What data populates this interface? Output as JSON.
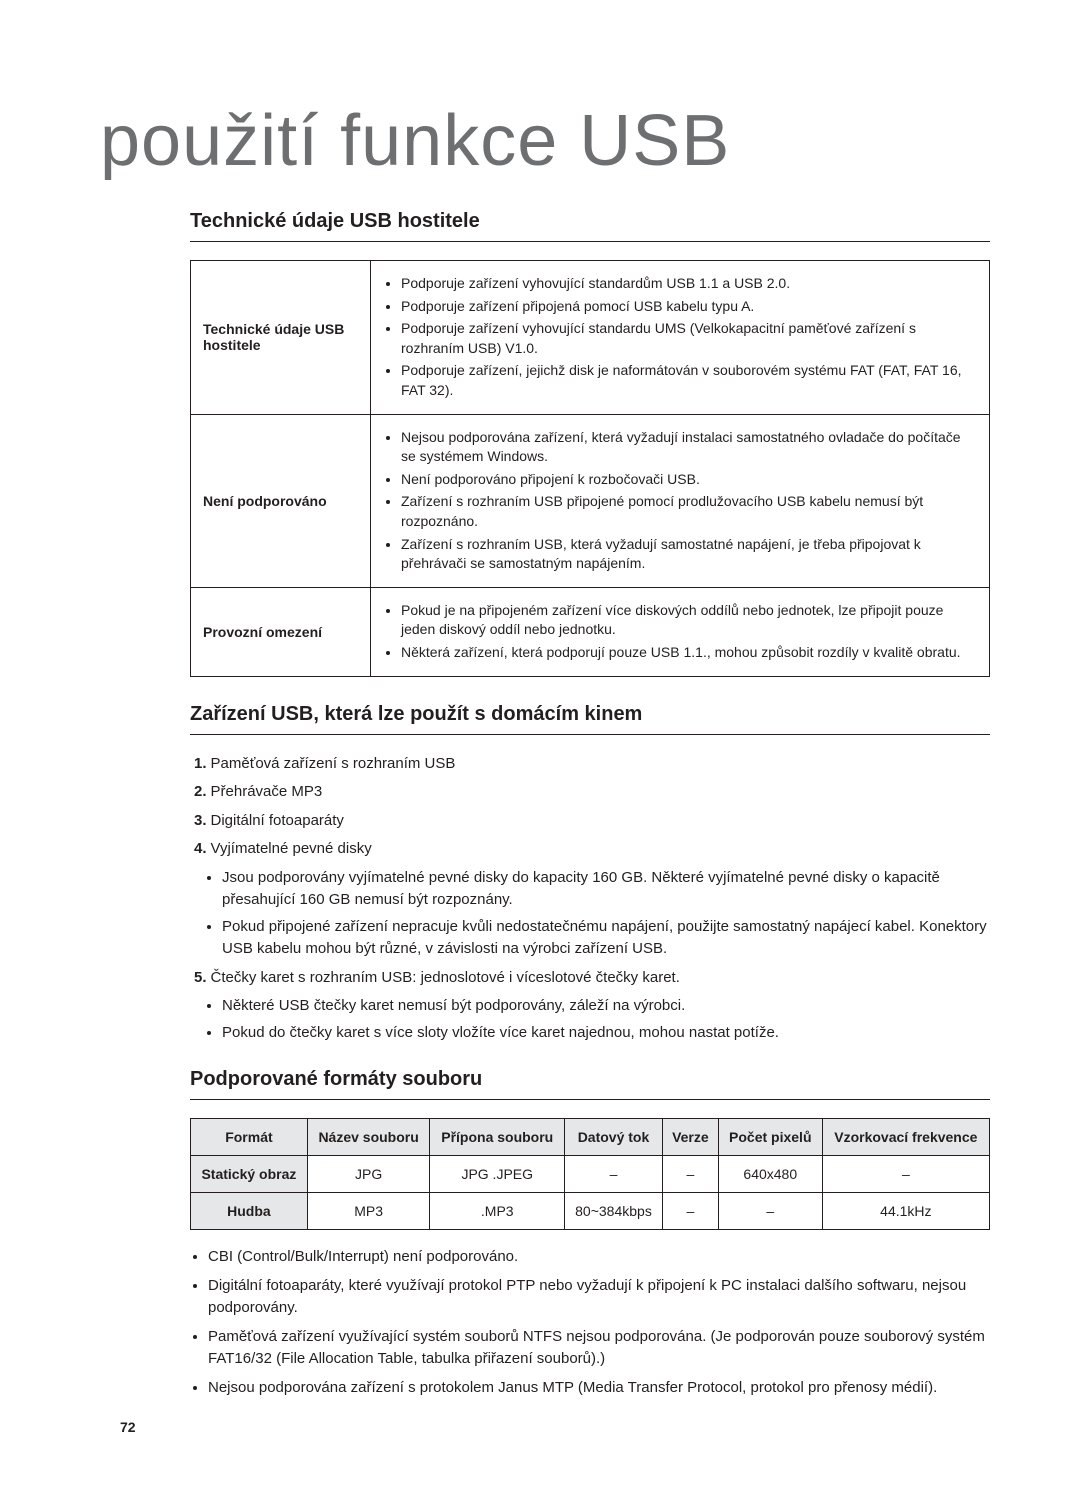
{
  "page_title": "použití funkce USB",
  "section1": {
    "heading": "Technické údaje USB hostitele",
    "rows": [
      {
        "label": "Technické údaje USB hostitele",
        "items": [
          "Podporuje zařízení vyhovující standardům USB 1.1 a USB 2.0.",
          "Podporuje zařízení připojená pomocí USB kabelu typu A.",
          "Podporuje zařízení vyhovující standardu UMS (Velkokapacitní paměťové zařízení s rozhraním USB) V1.0.",
          "Podporuje zařízení, jejichž disk je naformátován v souborovém systému FAT (FAT, FAT 16, FAT 32)."
        ]
      },
      {
        "label": "Není podporováno",
        "items": [
          "Nejsou podporována zařízení, která vyžadují instalaci samostatného ovladače do počítače se systémem Windows.",
          "Není podporováno připojení k rozbočovači USB.",
          "Zařízení s rozhraním USB připojené pomocí prodlužovacího USB kabelu nemusí být rozpoznáno.",
          "Zařízení s rozhraním USB, která vyžadují samostatné napájení, je třeba připojovat k přehrávači se samostatným napájením."
        ]
      },
      {
        "label": "Provozní omezení",
        "items": [
          "Pokud je na připojeném zařízení více diskových oddílů nebo jednotek, lze připojit pouze jeden diskový oddíl nebo jednotku.",
          "Některá zařízení, která podporují pouze USB 1.1., mohou způsobit rozdíly v kvalitě obratu."
        ]
      }
    ]
  },
  "section2": {
    "heading": "Zařízení USB, která lze použít s domácím kinem",
    "items": [
      {
        "num": "1.",
        "text": "Paměťová zařízení s rozhraním USB"
      },
      {
        "num": "2.",
        "text": "Přehrávače MP3"
      },
      {
        "num": "3.",
        "text": "Digitální fotoaparáty"
      },
      {
        "num": "4.",
        "text": "Vyjímatelné pevné disky",
        "sub": [
          "Jsou podporovány vyjímatelné pevné disky do kapacity 160 GB. Některé vyjímatelné pevné disky o kapacitě přesahující 160 GB nemusí být rozpoznány.",
          "Pokud připojené zařízení nepracuje kvůli nedostatečnému napájení, použijte samostatný napájecí kabel. Konektory USB kabelu mohou být různé, v závislosti na výrobci zařízení USB."
        ]
      },
      {
        "num": "5.",
        "text": "Čtečky karet s rozhraním USB: jednoslotové i víceslotové čtečky karet.",
        "sub": [
          "Některé USB čtečky karet nemusí být podporovány, záleží na výrobci.",
          "Pokud do čtečky karet s více sloty vložíte více karet najednou, mohou nastat potíže."
        ]
      }
    ]
  },
  "section3": {
    "heading": "Podporované formáty souboru",
    "headers": [
      "Formát",
      "Název souboru",
      "Přípona souboru",
      "Datový tok",
      "Verze",
      "Počet pixelů",
      "Vzorkovací frekvence"
    ],
    "rows": [
      [
        "Statický obraz",
        "JPG",
        "JPG .JPEG",
        "–",
        "–",
        "640x480",
        "–"
      ],
      [
        "Hudba",
        "MP3",
        ".MP3",
        "80~384kbps",
        "–",
        "–",
        "44.1kHz"
      ]
    ],
    "notes": [
      "CBI (Control/Bulk/Interrupt) není podporováno.",
      "Digitální fotoaparáty, které využívají protokol PTP nebo vyžadují k připojení k PC instalaci dalšího softwaru, nejsou podporovány.",
      "Paměťová zařízení využívající systém souborů NTFS nejsou podporována. (Je podporován pouze souborový systém FAT16/32 (File Allocation Table, tabulka přiřazení souborů).)",
      "Nejsou podporována zařízení s protokolem Janus MTP (Media Transfer Protocol, protokol pro přenosy médií)."
    ]
  },
  "page_number": "72"
}
